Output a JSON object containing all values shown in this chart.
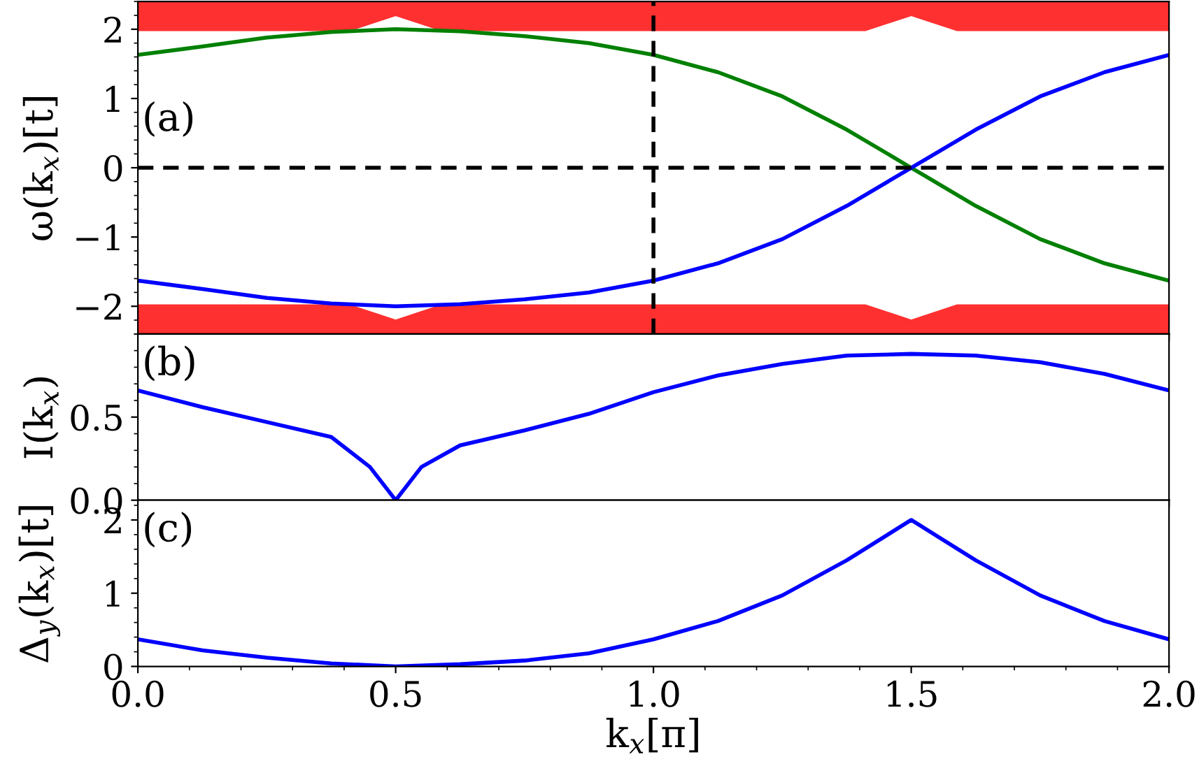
{
  "chart_data": [
    {
      "type": "line",
      "ylabel": "ω(k$_{x}$)[t]",
      "annotations": [
        "(a)"
      ],
      "xlim": [
        0,
        2.0
      ],
      "ylim": [
        -2.4,
        2.4
      ],
      "yticks": [
        {
          "value": -2,
          "label": "−2"
        },
        {
          "value": -1,
          "label": "−1"
        },
        0,
        1,
        2
      ],
      "tick_labels": "y",
      "grid": false,
      "legend": false,
      "series": [
        {
          "color": "#ff3030",
          "x": [
            0,
            0.41,
            0.5,
            0.59,
            1.41,
            1.5,
            1.59,
            2.0
          ],
          "values": [
            2,
            2,
            2.22,
            2,
            2,
            2.22,
            2,
            2
          ],
          "lower": [
            2,
            2,
            2.22,
            2,
            2,
            2.22,
            2,
            2
          ],
          "upper": [
            2.4,
            2.4,
            2.4,
            2.4,
            2.4,
            2.4,
            2.4,
            2.4
          ]
        },
        {
          "color": "#ff3030",
          "x": [
            0,
            0.41,
            0.5,
            0.59,
            1.41,
            1.5,
            1.59,
            2.0
          ],
          "values": [
            -2,
            -2,
            -2.22,
            -2,
            -2,
            -2.22,
            -2,
            -2
          ],
          "lower": [
            -2.4,
            -2.4,
            -2.4,
            -2.4,
            -2.4,
            -2.4,
            -2.4,
            -2.4
          ],
          "upper": [
            -2,
            -2,
            -2.22,
            -2,
            -2,
            -2.22,
            -2,
            -2
          ]
        },
        {
          "color": "#008000",
          "x": [
            0,
            0.125,
            0.25,
            0.375,
            0.5,
            0.625,
            0.75,
            0.875,
            1.0,
            1.125,
            1.25,
            1.375,
            1.5,
            1.625,
            1.75,
            1.875,
            2.0
          ],
          "values": [
            1.63,
            1.75,
            1.88,
            1.96,
            2.0,
            1.97,
            1.9,
            1.8,
            1.63,
            1.38,
            1.03,
            0.55,
            0,
            -0.55,
            -1.03,
            -1.38,
            -1.63
          ]
        },
        {
          "color": "#0000ff",
          "x": [
            0,
            0.125,
            0.25,
            0.375,
            0.5,
            0.625,
            0.75,
            0.875,
            1.0,
            1.125,
            1.25,
            1.375,
            1.5,
            1.625,
            1.75,
            1.875,
            2.0
          ],
          "values": [
            -1.63,
            -1.75,
            -1.88,
            -1.96,
            -2.0,
            -1.97,
            -1.9,
            -1.8,
            -1.63,
            -1.38,
            -1.03,
            -0.55,
            0,
            0.55,
            1.03,
            1.38,
            1.63
          ]
        }
      ],
      "ref_lines": [
        {
          "axis": "y",
          "value": 0,
          "color": "#000000",
          "line_style": "dashed"
        },
        {
          "axis": "x",
          "value": 1.0,
          "color": "#000000",
          "line_style": "dashed"
        }
      ]
    },
    {
      "type": "line",
      "ylabel": "I(k$_{x}$)",
      "annotations": [
        "(b)"
      ],
      "xlim": [
        0,
        2.0
      ],
      "ylim": [
        0,
        1.0
      ],
      "yticks": [
        {
          "value": 0,
          "label": "0.0"
        },
        0.5
      ],
      "tick_labels": "y",
      "grid": false,
      "legend": false,
      "series": [
        {
          "color": "#0000ff",
          "x": [
            0,
            0.125,
            0.25,
            0.375,
            0.45,
            0.5,
            0.55,
            0.625,
            0.75,
            0.875,
            1.0,
            1.125,
            1.25,
            1.375,
            1.5,
            1.625,
            1.75,
            1.875,
            2.0
          ],
          "values": [
            0.66,
            0.56,
            0.47,
            0.38,
            0.2,
            0,
            0.2,
            0.33,
            0.42,
            0.52,
            0.65,
            0.75,
            0.82,
            0.87,
            0.88,
            0.87,
            0.83,
            0.76,
            0.66
          ]
        }
      ]
    },
    {
      "type": "line",
      "ylabel": "Δ$_{y}$(k$_{x}$)[t]",
      "xlabel": "k$_{x}$[π]",
      "annotations": [
        "(c)"
      ],
      "xlim": [
        0,
        2.0
      ],
      "ylim": [
        0,
        2.27
      ],
      "xticks": [
        {
          "value": 0,
          "label": "0.0"
        },
        0.5,
        {
          "value": 1,
          "label": "1.0"
        },
        1.5,
        {
          "value": 2,
          "label": "2.0"
        }
      ],
      "yticks": [
        0,
        1,
        2
      ],
      "grid": false,
      "legend": false,
      "series": [
        {
          "color": "#0000ff",
          "x": [
            0,
            0.125,
            0.25,
            0.375,
            0.5,
            0.625,
            0.75,
            0.875,
            1.0,
            1.125,
            1.25,
            1.375,
            1.5,
            1.625,
            1.75,
            1.875,
            2.0
          ],
          "values": [
            0.37,
            0.22,
            0.12,
            0.04,
            0,
            0.03,
            0.08,
            0.18,
            0.37,
            0.62,
            0.97,
            1.45,
            2.0,
            1.45,
            0.97,
            0.62,
            0.37
          ]
        }
      ]
    }
  ]
}
